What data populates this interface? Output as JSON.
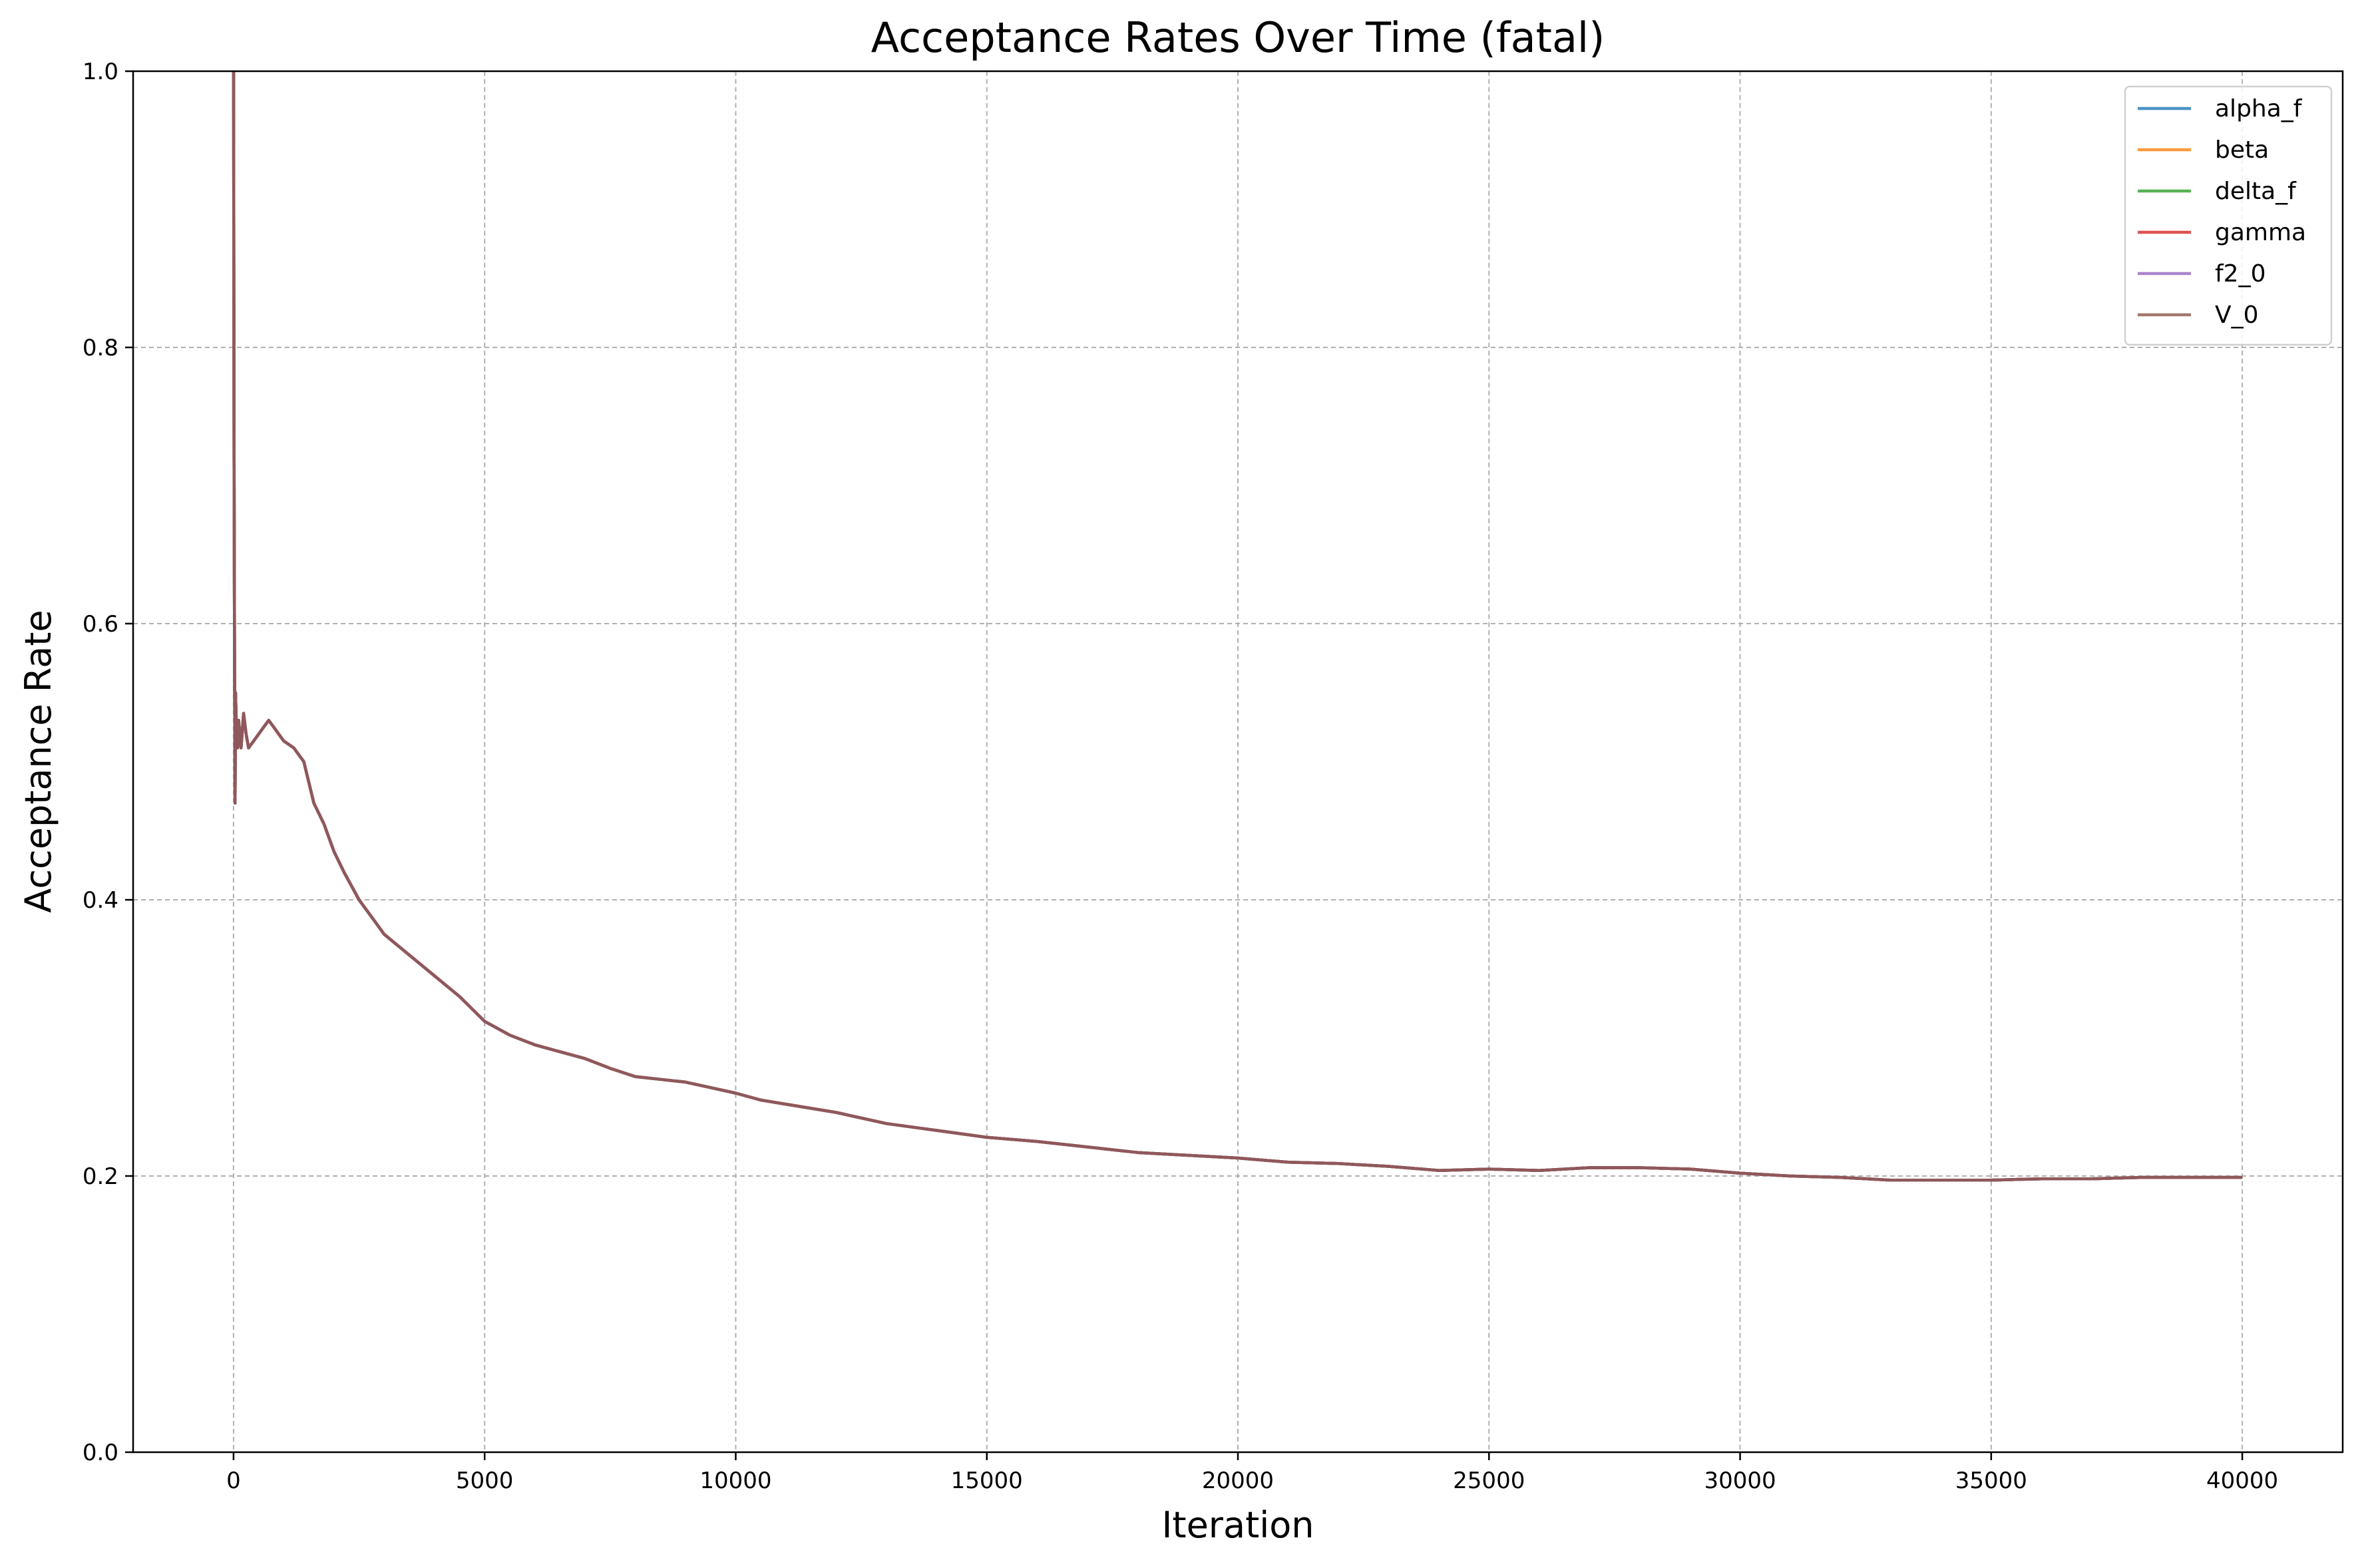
{
  "chart_data": {
    "type": "line",
    "title": "Acceptance Rates Over Time (fatal)",
    "xlabel": "Iteration",
    "ylabel": "Acceptance Rate",
    "xlim": [
      -2000,
      42000
    ],
    "ylim": [
      0,
      1
    ],
    "xticks": [
      0,
      5000,
      10000,
      15000,
      20000,
      25000,
      30000,
      35000,
      40000
    ],
    "xtick_labels": [
      "0",
      "5000",
      "10000",
      "15000",
      "20000",
      "25000",
      "30000",
      "35000",
      "40000"
    ],
    "yticks": [
      0,
      0.2,
      0.4,
      0.6,
      0.8,
      1.0
    ],
    "ytick_labels": [
      "0.0",
      "0.2",
      "0.4",
      "0.6",
      "0.8",
      "1.0"
    ],
    "grid": true,
    "legend_position": "top-right",
    "x": [
      1,
      10,
      20,
      30,
      40,
      60,
      80,
      100,
      150,
      200,
      250,
      300,
      400,
      500,
      600,
      700,
      800,
      900,
      1000,
      1200,
      1400,
      1600,
      1800,
      2000,
      2200,
      2500,
      2800,
      3000,
      3500,
      4000,
      4500,
      5000,
      5500,
      6000,
      6500,
      7000,
      7500,
      8000,
      8500,
      9000,
      9500,
      10000,
      10500,
      11000,
      12000,
      13000,
      14000,
      15000,
      16000,
      17000,
      18000,
      19000,
      20000,
      21000,
      22000,
      23000,
      24000,
      25000,
      26000,
      27000,
      28000,
      29000,
      30000,
      31000,
      32000,
      33000,
      34000,
      35000,
      36000,
      37000,
      38000,
      39000,
      40000
    ],
    "series": [
      {
        "name": "alpha_f",
        "color": "#1f77b4",
        "values": [
          1.0,
          0.72,
          0.58,
          0.47,
          0.55,
          0.52,
          0.51,
          0.53,
          0.51,
          0.535,
          0.52,
          0.51,
          0.515,
          0.52,
          0.525,
          0.53,
          0.525,
          0.52,
          0.515,
          0.51,
          0.5,
          0.47,
          0.455,
          0.435,
          0.42,
          0.4,
          0.385,
          0.375,
          0.36,
          0.345,
          0.33,
          0.312,
          0.302,
          0.295,
          0.29,
          0.285,
          0.278,
          0.272,
          0.27,
          0.268,
          0.264,
          0.26,
          0.255,
          0.252,
          0.246,
          0.238,
          0.233,
          0.228,
          0.225,
          0.221,
          0.217,
          0.215,
          0.213,
          0.21,
          0.209,
          0.207,
          0.204,
          0.205,
          0.204,
          0.206,
          0.206,
          0.205,
          0.202,
          0.2,
          0.199,
          0.197,
          0.197,
          0.197,
          0.198,
          0.198,
          0.199,
          0.199,
          0.199
        ]
      },
      {
        "name": "beta",
        "color": "#ff7f0e",
        "values": [
          1.0,
          0.72,
          0.58,
          0.47,
          0.55,
          0.52,
          0.51,
          0.53,
          0.51,
          0.535,
          0.52,
          0.51,
          0.515,
          0.52,
          0.525,
          0.53,
          0.525,
          0.52,
          0.515,
          0.51,
          0.5,
          0.47,
          0.455,
          0.435,
          0.42,
          0.4,
          0.385,
          0.375,
          0.36,
          0.345,
          0.33,
          0.312,
          0.302,
          0.295,
          0.29,
          0.285,
          0.278,
          0.272,
          0.27,
          0.268,
          0.264,
          0.26,
          0.255,
          0.252,
          0.246,
          0.238,
          0.233,
          0.228,
          0.225,
          0.221,
          0.217,
          0.215,
          0.213,
          0.21,
          0.209,
          0.207,
          0.204,
          0.205,
          0.204,
          0.206,
          0.206,
          0.205,
          0.202,
          0.2,
          0.199,
          0.197,
          0.197,
          0.197,
          0.198,
          0.198,
          0.199,
          0.199,
          0.199
        ]
      },
      {
        "name": "delta_f",
        "color": "#2ca02c",
        "values": [
          1.0,
          0.72,
          0.58,
          0.47,
          0.55,
          0.52,
          0.51,
          0.53,
          0.51,
          0.535,
          0.52,
          0.51,
          0.515,
          0.52,
          0.525,
          0.53,
          0.525,
          0.52,
          0.515,
          0.51,
          0.5,
          0.47,
          0.455,
          0.435,
          0.42,
          0.4,
          0.385,
          0.375,
          0.36,
          0.345,
          0.33,
          0.312,
          0.302,
          0.295,
          0.29,
          0.285,
          0.278,
          0.272,
          0.27,
          0.268,
          0.264,
          0.26,
          0.255,
          0.252,
          0.246,
          0.238,
          0.233,
          0.228,
          0.225,
          0.221,
          0.217,
          0.215,
          0.213,
          0.21,
          0.209,
          0.207,
          0.204,
          0.205,
          0.204,
          0.206,
          0.206,
          0.205,
          0.202,
          0.2,
          0.199,
          0.197,
          0.197,
          0.197,
          0.198,
          0.198,
          0.199,
          0.199,
          0.199
        ]
      },
      {
        "name": "gamma",
        "color": "#d62728",
        "values": [
          1.0,
          0.72,
          0.58,
          0.47,
          0.55,
          0.52,
          0.51,
          0.53,
          0.51,
          0.535,
          0.52,
          0.51,
          0.515,
          0.52,
          0.525,
          0.53,
          0.525,
          0.52,
          0.515,
          0.51,
          0.5,
          0.47,
          0.455,
          0.435,
          0.42,
          0.4,
          0.385,
          0.375,
          0.36,
          0.345,
          0.33,
          0.312,
          0.302,
          0.295,
          0.29,
          0.285,
          0.278,
          0.272,
          0.27,
          0.268,
          0.264,
          0.26,
          0.255,
          0.252,
          0.246,
          0.238,
          0.233,
          0.228,
          0.225,
          0.221,
          0.217,
          0.215,
          0.213,
          0.21,
          0.209,
          0.207,
          0.204,
          0.205,
          0.204,
          0.206,
          0.206,
          0.205,
          0.202,
          0.2,
          0.199,
          0.197,
          0.197,
          0.197,
          0.198,
          0.198,
          0.199,
          0.199,
          0.199
        ]
      },
      {
        "name": "f2_0",
        "color": "#9467bd",
        "values": [
          1.0,
          0.72,
          0.58,
          0.47,
          0.55,
          0.52,
          0.51,
          0.53,
          0.51,
          0.535,
          0.52,
          0.51,
          0.515,
          0.52,
          0.525,
          0.53,
          0.525,
          0.52,
          0.515,
          0.51,
          0.5,
          0.47,
          0.455,
          0.435,
          0.42,
          0.4,
          0.385,
          0.375,
          0.36,
          0.345,
          0.33,
          0.312,
          0.302,
          0.295,
          0.29,
          0.285,
          0.278,
          0.272,
          0.27,
          0.268,
          0.264,
          0.26,
          0.255,
          0.252,
          0.246,
          0.238,
          0.233,
          0.228,
          0.225,
          0.221,
          0.217,
          0.215,
          0.213,
          0.21,
          0.209,
          0.207,
          0.204,
          0.205,
          0.204,
          0.206,
          0.206,
          0.205,
          0.202,
          0.2,
          0.199,
          0.197,
          0.197,
          0.197,
          0.198,
          0.198,
          0.199,
          0.199,
          0.199
        ]
      },
      {
        "name": "V_0",
        "color": "#8c564b",
        "values": [
          1.0,
          0.72,
          0.58,
          0.47,
          0.55,
          0.52,
          0.51,
          0.53,
          0.51,
          0.535,
          0.52,
          0.51,
          0.515,
          0.52,
          0.525,
          0.53,
          0.525,
          0.52,
          0.515,
          0.51,
          0.5,
          0.47,
          0.455,
          0.435,
          0.42,
          0.4,
          0.385,
          0.375,
          0.36,
          0.345,
          0.33,
          0.312,
          0.302,
          0.295,
          0.29,
          0.285,
          0.278,
          0.272,
          0.27,
          0.268,
          0.264,
          0.26,
          0.255,
          0.252,
          0.246,
          0.238,
          0.233,
          0.228,
          0.225,
          0.221,
          0.217,
          0.215,
          0.213,
          0.21,
          0.209,
          0.207,
          0.204,
          0.205,
          0.204,
          0.206,
          0.206,
          0.205,
          0.202,
          0.2,
          0.199,
          0.197,
          0.197,
          0.197,
          0.198,
          0.198,
          0.199,
          0.199,
          0.199
        ]
      }
    ]
  }
}
